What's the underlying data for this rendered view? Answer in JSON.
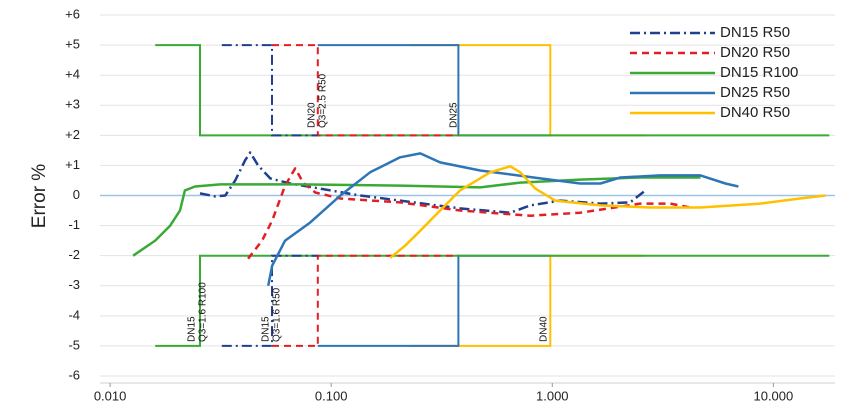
{
  "chart_data": {
    "type": "line",
    "y_axis_label": "Error %",
    "xscale": "log",
    "xlim": [
      0.009,
      19
    ],
    "ylim": [
      -6.3,
      6.5
    ],
    "xticks": [
      {
        "value": 0.01,
        "label": "0.010"
      },
      {
        "value": 0.1,
        "label": "0.100"
      },
      {
        "value": 1,
        "label": "1.000"
      },
      {
        "value": 10,
        "label": "10.000"
      }
    ],
    "yticks": [
      {
        "value": 6,
        "label": "+6"
      },
      {
        "value": 5,
        "label": "+5"
      },
      {
        "value": 4,
        "label": "+4"
      },
      {
        "value": 3,
        "label": "+3"
      },
      {
        "value": 2,
        "label": "+2"
      },
      {
        "value": 1,
        "label": "+1"
      },
      0,
      -1,
      -2,
      -3,
      -4,
      -5,
      -6
    ],
    "grid": true,
    "zero_line_color": "#9dc3e6",
    "legend": "top-right",
    "series": [
      {
        "name": "DN15 R50",
        "color": "#1f3f8f",
        "dash": "dashdot",
        "x": [
          0.0255,
          0.0299,
          0.0332,
          0.0368,
          0.0408,
          0.043,
          0.0467,
          0.053,
          0.0652,
          0.0891,
          0.135,
          0.205,
          0.383,
          0.646,
          0.795,
          1.086,
          1.65,
          2.25,
          2.64
        ],
        "values": [
          0.07,
          -0.03,
          0,
          0.5,
          1.17,
          1.43,
          1,
          0.57,
          0.4,
          0.23,
          0,
          -0.17,
          -0.43,
          -0.57,
          -0.33,
          -0.17,
          -0.27,
          -0.23,
          0.17
        ],
        "limit_x": [
          0.032,
          0.054,
          0.054,
          0.087
        ],
        "limit_upper": [
          5,
          5,
          2,
          2
        ],
        "limit_lower": [
          -5,
          -5,
          -2,
          -2
        ]
      },
      {
        "name": "DN20 R50",
        "color": "#e31e24",
        "dash": "dashed",
        "x": [
          0.0421,
          0.0487,
          0.0541,
          0.0619,
          0.0687,
          0.0747,
          0.0847,
          0.11,
          0.205,
          0.383,
          0.795,
          1.34,
          2.5,
          3.42,
          4.21
        ],
        "values": [
          -2.1,
          -1.5,
          -0.83,
          0.33,
          0.9,
          0.43,
          0.1,
          -0.1,
          -0.23,
          -0.5,
          -0.67,
          -0.57,
          -0.27,
          -0.27,
          -0.4
        ],
        "limit_x": [
          0.054,
          0.087,
          0.087,
          0.376
        ],
        "limit_upper": [
          5,
          5,
          2,
          2
        ],
        "limit_lower": [
          -5,
          -5,
          -2,
          -2
        ]
      },
      {
        "name": "DN15 R100",
        "color": "#3aaa35",
        "dash": "solid",
        "x": [
          0.0127,
          0.016,
          0.0187,
          0.0207,
          0.0218,
          0.0242,
          0.0315,
          0.0724,
          0.205,
          0.472,
          0.716,
          1.34,
          2.5,
          4.68
        ],
        "values": [
          -2,
          -1.5,
          -1,
          -0.5,
          0.17,
          0.3,
          0.37,
          0.37,
          0.33,
          0.27,
          0.43,
          0.53,
          0.6,
          0.6
        ],
        "limit_x": [
          0.016,
          0.0255,
          0.0255,
          17.9
        ],
        "limit_upper": [
          5,
          5,
          2,
          2
        ],
        "limit_lower": [
          -5,
          -5,
          -2,
          -2
        ]
      },
      {
        "name": "DN25 R50",
        "color": "#2e75b6",
        "dash": "solid",
        "x": [
          0.0519,
          0.0541,
          0.0619,
          0.0803,
          0.11,
          0.15,
          0.205,
          0.253,
          0.311,
          0.472,
          0.883,
          1.34,
          1.65,
          2.03,
          3.08,
          4.68,
          6.07,
          6.95
        ],
        "values": [
          -3,
          -2.33,
          -1.5,
          -0.9,
          0,
          0.77,
          1.27,
          1.4,
          1.1,
          0.83,
          0.57,
          0.4,
          0.4,
          0.6,
          0.67,
          0.67,
          0.4,
          0.3
        ],
        "limit_x": [
          0.087,
          0.376,
          0.376,
          0.98
        ],
        "limit_upper": [
          5,
          5,
          2,
          2
        ],
        "limit_lower": [
          -5,
          -5,
          -2,
          -2
        ]
      },
      {
        "name": "DN40 R50",
        "color": "#ffc000",
        "dash": "solid",
        "x": [
          0.185,
          0.216,
          0.253,
          0.311,
          0.383,
          0.524,
          0.646,
          0.716,
          0.838,
          1.03,
          1.65,
          2.77,
          4.68,
          8.73,
          13.2,
          17.2
        ],
        "values": [
          -2.07,
          -1.67,
          -1.17,
          -0.5,
          0.17,
          0.77,
          0.97,
          0.77,
          0.23,
          -0.17,
          -0.33,
          -0.4,
          -0.4,
          -0.27,
          -0.1,
          0
        ],
        "limit_x": [
          0.228,
          0.98,
          0.98,
          2.64
        ],
        "limit_upper": [
          5,
          5,
          2,
          2
        ],
        "limit_lower": [
          -5,
          -5,
          -2,
          -2
        ]
      }
    ],
    "annotations": [
      {
        "lines": [
          "DN15",
          "Q3=1.6 R100"
        ]
      },
      {
        "lines": [
          "DN15",
          "Q3=1.6 R50"
        ]
      },
      {
        "lines": [
          "DN20",
          "Q3=2.5 R50"
        ]
      },
      {
        "lines": [
          "DN25"
        ]
      },
      {
        "lines": [
          "DN40"
        ]
      }
    ]
  }
}
